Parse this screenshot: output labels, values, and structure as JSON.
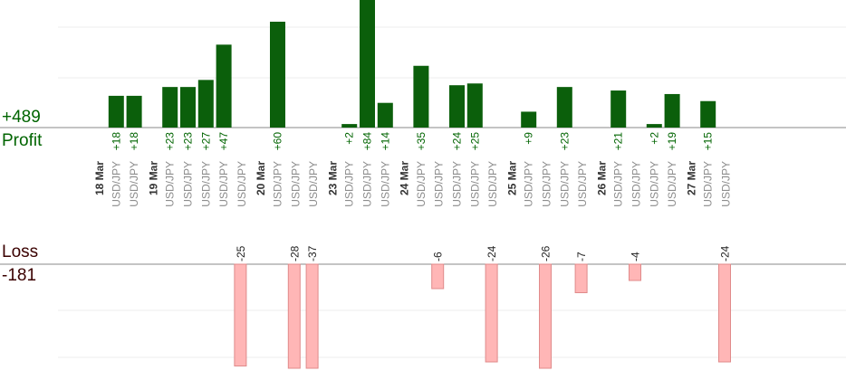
{
  "summary": {
    "profit_total": "+489",
    "profit_label": "Profit",
    "loss_label": "Loss",
    "loss_total": "-181"
  },
  "colors": {
    "profit_bar": "#0b5f0b",
    "profit_text": "#006400",
    "loss_bar_fill": "#ffb6b6",
    "loss_bar_stroke": "#e08a8a",
    "loss_text": "#3a0000",
    "axis": "#888888",
    "grid": "#ececec",
    "date_text": "#333333",
    "symbol_text": "#8c8c8c"
  },
  "chart_data": {
    "type": "bar",
    "description_of_axes": "trades grouped by date; profit bars upward, loss bars downward",
    "dates": [
      {
        "label": "18 Mar",
        "trades": [
          {
            "symbol": "USD/JPY",
            "value": 18
          },
          {
            "symbol": "USD/JPY",
            "value": 18
          }
        ]
      },
      {
        "label": "19 Mar",
        "trades": [
          {
            "symbol": "USD/JPY",
            "value": 23
          },
          {
            "symbol": "USD/JPY",
            "value": 23
          },
          {
            "symbol": "USD/JPY",
            "value": 27
          },
          {
            "symbol": "USD/JPY",
            "value": 47
          },
          {
            "symbol": "USD/JPY",
            "value": -25
          }
        ]
      },
      {
        "label": "20 Mar",
        "trades": [
          {
            "symbol": "USD/JPY",
            "value": 60
          },
          {
            "symbol": "USD/JPY",
            "value": -28
          },
          {
            "symbol": "USD/JPY",
            "value": -37
          }
        ]
      },
      {
        "label": "23 Mar",
        "trades": [
          {
            "symbol": "USD/JPY",
            "value": 2
          },
          {
            "symbol": "USD/JPY",
            "value": 84
          },
          {
            "symbol": "USD/JPY",
            "value": 14
          }
        ]
      },
      {
        "label": "24 Mar",
        "trades": [
          {
            "symbol": "USD/JPY",
            "value": 35
          },
          {
            "symbol": "USD/JPY",
            "value": -6
          },
          {
            "symbol": "USD/JPY",
            "value": 24
          },
          {
            "symbol": "USD/JPY",
            "value": 25
          },
          {
            "symbol": "USD/JPY",
            "value": -24
          }
        ]
      },
      {
        "label": "25 Mar",
        "trades": [
          {
            "symbol": "USD/JPY",
            "value": 9
          },
          {
            "symbol": "USD/JPY",
            "value": -26
          },
          {
            "symbol": "USD/JPY",
            "value": 23
          },
          {
            "symbol": "USD/JPY",
            "value": -7
          }
        ]
      },
      {
        "label": "26 Mar",
        "trades": [
          {
            "symbol": "USD/JPY",
            "value": 21
          },
          {
            "symbol": "USD/JPY",
            "value": -4
          },
          {
            "symbol": "USD/JPY",
            "value": 2
          },
          {
            "symbol": "USD/JPY",
            "value": 19
          }
        ]
      },
      {
        "label": "27 Mar",
        "trades": [
          {
            "symbol": "USD/JPY",
            "value": 15
          },
          {
            "symbol": "USD/JPY",
            "value": -24
          }
        ]
      }
    ],
    "grid": true
  }
}
